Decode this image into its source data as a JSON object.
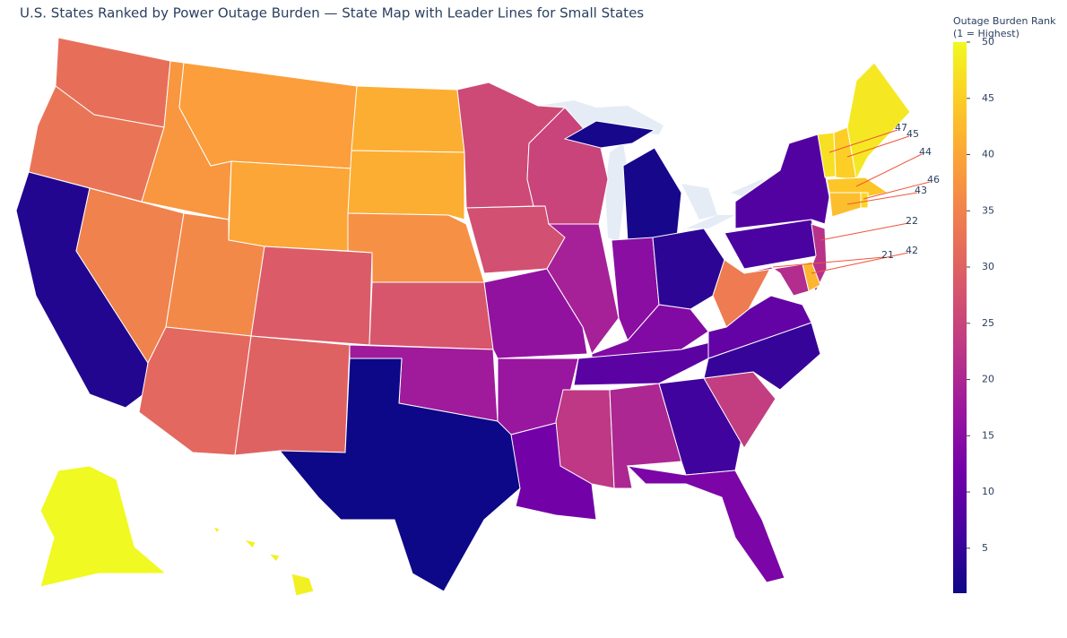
{
  "chart_data": {
    "type": "choropleth",
    "title": "U.S. States Ranked by Power Outage Burden — State Map with Leader Lines for Small States",
    "colorbar_title": [
      "Outage Burden Rank",
      "(1 = Highest)"
    ],
    "values": [
      32,
      33,
      3,
      35,
      38,
      39,
      40,
      36,
      31,
      29,
      30,
      41,
      41,
      37,
      28,
      18,
      1,
      26,
      27,
      16,
      17,
      12,
      25,
      19,
      2,
      15,
      4,
      14,
      9,
      23,
      20,
      6,
      13,
      24,
      5,
      10,
      34,
      7,
      8,
      47,
      45,
      48,
      44,
      46,
      43,
      22,
      42,
      21,
      50,
      49
    ],
    "zlim": [
      1,
      50
    ],
    "zticks": [
      5,
      10,
      15,
      20,
      25,
      30,
      35,
      40,
      45,
      50
    ],
    "colorscale": [
      "#0d0887",
      "#46039f",
      "#7201a8",
      "#9c179e",
      "#bd3786",
      "#d8576b",
      "#ed7953",
      "#fb9f3a",
      "#fdca26",
      "#f0f921"
    ],
    "leader_color": "#ef553b"
  }
}
